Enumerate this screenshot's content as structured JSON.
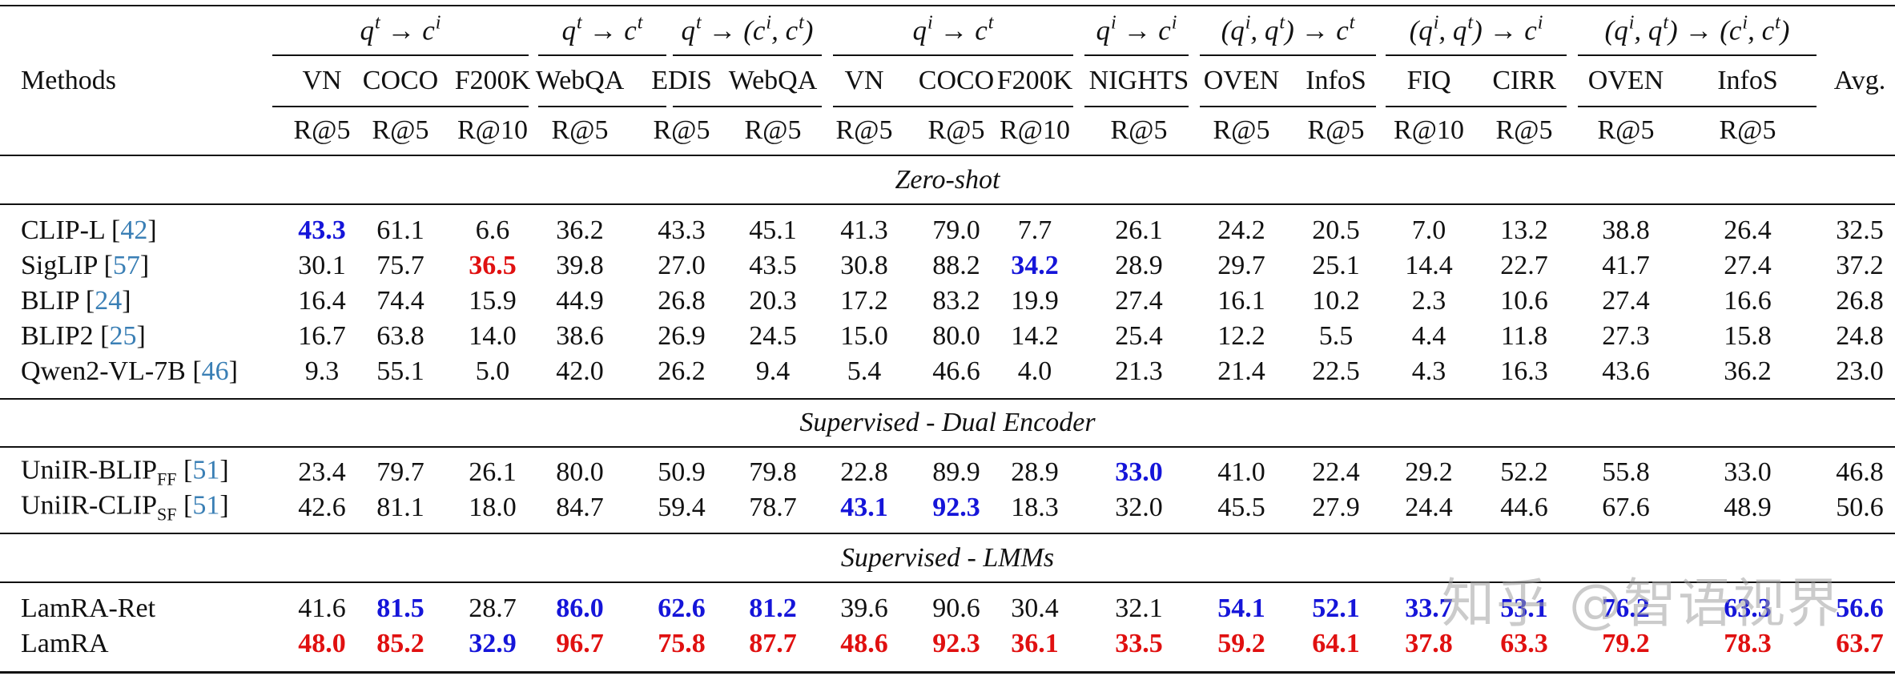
{
  "header": {
    "methods_label": "Methods",
    "avg_label": "Avg.",
    "groups": [
      {
        "q": "t",
        "arrow": "→",
        "c": "i",
        "paren": false
      },
      {
        "q": "t",
        "arrow": "→",
        "c": "t",
        "paren": false
      },
      {
        "q": "t",
        "arrow": "→",
        "c": "(c^i, c^t)",
        "paren": true
      },
      {
        "q": "i",
        "arrow": "→",
        "c": "t",
        "paren": false
      },
      {
        "q": "i",
        "arrow": "→",
        "c": "i",
        "paren": false
      },
      {
        "q": "(q^i, q^t)",
        "arrow": "→",
        "c": "t",
        "paren": true
      },
      {
        "q": "(q^i, q^t)",
        "arrow": "→",
        "c": "i",
        "paren": true
      },
      {
        "q": "(q^i, q^t)",
        "arrow": "→",
        "c": "(c^i, c^t)",
        "paren": true
      }
    ],
    "datasets": [
      "VN",
      "COCO",
      "F200K",
      "WebQA",
      "EDIS",
      "WebQA",
      "VN",
      "COCO",
      "F200K",
      "NIGHTS",
      "OVEN",
      "InfoS",
      "FIQ",
      "CIRR",
      "OVEN",
      "InfoS"
    ],
    "metrics": [
      "R@5",
      "R@5",
      "R@10",
      "R@5",
      "R@5",
      "R@5",
      "R@5",
      "R@5",
      "R@10",
      "R@5",
      "R@5",
      "R@5",
      "R@10",
      "R@5",
      "R@5",
      "R@5"
    ]
  },
  "sections": [
    {
      "title": "Zero-shot",
      "rows": [
        {
          "method": "CLIP-L",
          "sub": "",
          "ref": "42",
          "values": [
            "43.3",
            "61.1",
            "6.6",
            "36.2",
            "43.3",
            "45.1",
            "41.3",
            "79.0",
            "7.7",
            "26.1",
            "24.2",
            "20.5",
            "7.0",
            "13.2",
            "38.8",
            "26.4",
            "32.5"
          ],
          "styles": [
            "blue",
            "",
            "",
            "",
            "",
            "",
            "",
            "",
            "",
            "",
            "",
            "",
            "",
            "",
            "",
            "",
            ""
          ]
        },
        {
          "method": "SigLIP",
          "sub": "",
          "ref": "57",
          "values": [
            "30.1",
            "75.7",
            "36.5",
            "39.8",
            "27.0",
            "43.5",
            "30.8",
            "88.2",
            "34.2",
            "28.9",
            "29.7",
            "25.1",
            "14.4",
            "22.7",
            "41.7",
            "27.4",
            "37.2"
          ],
          "styles": [
            "",
            "",
            "red",
            "",
            "",
            "",
            "",
            "",
            "blue",
            "",
            "",
            "",
            "",
            "",
            "",
            "",
            ""
          ]
        },
        {
          "method": "BLIP",
          "sub": "",
          "ref": "24",
          "values": [
            "16.4",
            "74.4",
            "15.9",
            "44.9",
            "26.8",
            "20.3",
            "17.2",
            "83.2",
            "19.9",
            "27.4",
            "16.1",
            "10.2",
            "2.3",
            "10.6",
            "27.4",
            "16.6",
            "26.8"
          ],
          "styles": [
            "",
            "",
            "",
            "",
            "",
            "",
            "",
            "",
            "",
            "",
            "",
            "",
            "",
            "",
            "",
            "",
            ""
          ]
        },
        {
          "method": "BLIP2",
          "sub": "",
          "ref": "25",
          "values": [
            "16.7",
            "63.8",
            "14.0",
            "38.6",
            "26.9",
            "24.5",
            "15.0",
            "80.0",
            "14.2",
            "25.4",
            "12.2",
            "5.5",
            "4.4",
            "11.8",
            "27.3",
            "15.8",
            "24.8"
          ],
          "styles": [
            "",
            "",
            "",
            "",
            "",
            "",
            "",
            "",
            "",
            "",
            "",
            "",
            "",
            "",
            "",
            "",
            ""
          ]
        },
        {
          "method": "Qwen2-VL-7B",
          "sub": "",
          "ref": "46",
          "values": [
            "9.3",
            "55.1",
            "5.0",
            "42.0",
            "26.2",
            "9.4",
            "5.4",
            "46.6",
            "4.0",
            "21.3",
            "21.4",
            "22.5",
            "4.3",
            "16.3",
            "43.6",
            "36.2",
            "23.0"
          ],
          "styles": [
            "",
            "",
            "",
            "",
            "",
            "",
            "",
            "",
            "",
            "",
            "",
            "",
            "",
            "",
            "",
            "",
            ""
          ]
        }
      ]
    },
    {
      "title": "Supervised - Dual Encoder",
      "rows": [
        {
          "method": "UniIR-BLIP",
          "sub": "FF",
          "ref": "51",
          "values": [
            "23.4",
            "79.7",
            "26.1",
            "80.0",
            "50.9",
            "79.8",
            "22.8",
            "89.9",
            "28.9",
            "33.0",
            "41.0",
            "22.4",
            "29.2",
            "52.2",
            "55.8",
            "33.0",
            "46.8"
          ],
          "styles": [
            "",
            "",
            "",
            "",
            "",
            "",
            "",
            "",
            "",
            "blue",
            "",
            "",
            "",
            "",
            "",
            "",
            ""
          ]
        },
        {
          "method": "UniIR-CLIP",
          "sub": "SF",
          "ref": "51",
          "values": [
            "42.6",
            "81.1",
            "18.0",
            "84.7",
            "59.4",
            "78.7",
            "43.1",
            "92.3",
            "18.3",
            "32.0",
            "45.5",
            "27.9",
            "24.4",
            "44.6",
            "67.6",
            "48.9",
            "50.6"
          ],
          "styles": [
            "",
            "",
            "",
            "",
            "",
            "",
            "blue",
            "blue",
            "",
            "",
            "",
            "",
            "",
            "",
            "",
            "",
            ""
          ]
        }
      ]
    },
    {
      "title": "Supervised - LMMs",
      "rows": [
        {
          "method": "LamRA-Ret",
          "sub": "",
          "ref": "",
          "values": [
            "41.6",
            "81.5",
            "28.7",
            "86.0",
            "62.6",
            "81.2",
            "39.6",
            "90.6",
            "30.4",
            "32.1",
            "54.1",
            "52.1",
            "33.7",
            "53.1",
            "76.2",
            "63.3",
            "56.6"
          ],
          "styles": [
            "",
            "blue",
            "",
            "blue",
            "blue",
            "blue",
            "",
            "",
            "",
            "",
            "blue",
            "blue",
            "blue",
            "blue",
            "blue",
            "blue",
            "blue"
          ]
        },
        {
          "method": "LamRA",
          "sub": "",
          "ref": "",
          "values": [
            "48.0",
            "85.2",
            "32.9",
            "96.7",
            "75.8",
            "87.7",
            "48.6",
            "92.3",
            "36.1",
            "33.5",
            "59.2",
            "64.1",
            "37.8",
            "63.3",
            "79.2",
            "78.3",
            "63.7"
          ],
          "styles": [
            "red",
            "red",
            "blue",
            "red",
            "red",
            "red",
            "red",
            "red",
            "red",
            "red",
            "red",
            "red",
            "red",
            "red",
            "red",
            "red",
            "red"
          ]
        }
      ]
    }
  ],
  "watermark": "知乎 @智语视界"
}
